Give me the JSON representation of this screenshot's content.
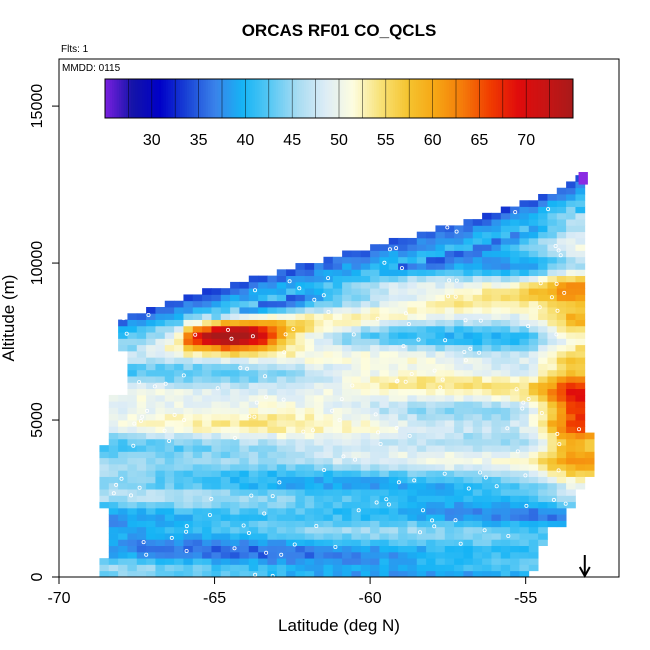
{
  "chart_data": {
    "type": "heatmap",
    "title": "ORCAS RF01 CO_QCLS",
    "subtitle_flights": "Flts: 1",
    "subtitle_date": "MMDD: 0115",
    "xlabel": "Latitude (deg N)",
    "ylabel": "Altitude (m)",
    "xlim": [
      -70,
      -52
    ],
    "ylim": [
      0,
      16500
    ],
    "x_ticks": [
      -70,
      -65,
      -60,
      -55
    ],
    "x_tick_labels": [
      "-70",
      "-65",
      "-60",
      "-55"
    ],
    "y_ticks": [
      0,
      5000,
      10000,
      15000
    ],
    "y_tick_labels": [
      "0",
      "5000",
      "10000",
      "15000"
    ],
    "colorbar": {
      "min": 25,
      "max": 75,
      "ticks": [
        30,
        35,
        40,
        45,
        50,
        55,
        60,
        65,
        70
      ],
      "tick_labels": [
        "30",
        "35",
        "40",
        "45",
        "50",
        "55",
        "60",
        "65",
        "70"
      ],
      "colors": [
        "#7a1fe0",
        "#1414a8",
        "#0000c8",
        "#1a45d6",
        "#3a82ea",
        "#16b4f5",
        "#58c8f4",
        "#a8dcf2",
        "#dcecf6",
        "#fdfde0",
        "#f8e278",
        "#f5c430",
        "#f6a614",
        "#f57a0a",
        "#f03c00",
        "#e00c0c",
        "#c81414",
        "#a81a1a"
      ]
    },
    "flight_lat_range": [
      -68.8,
      -53.0
    ],
    "ceiling_altitude": {
      "lat": [
        -68.2,
        -65.0,
        -62.0,
        -59.0,
        -56.0,
        -54.0,
        -53.3
      ],
      "alt": [
        8200,
        9200,
        10000,
        10800,
        11600,
        12300,
        12700
      ]
    },
    "co_layers": [
      {
        "name": "",
        "altitude": 7600,
        "lat_center": -64.5,
        "value": 68
      },
      {
        "name": "",
        "altitude": 8500,
        "lat_center": -60.0,
        "value": 57
      },
      {
        "name": "",
        "altitude": 4700,
        "lat_center": -53.5,
        "value": 67
      },
      {
        "name": "",
        "altitude": 5600,
        "lat_center": -62.0,
        "value": 53
      },
      {
        "name": "",
        "altitude": 1500,
        "lat_center": -62.0,
        "value": 42
      }
    ],
    "marker": {
      "type": "arrow-down",
      "lat": -53.1
    }
  }
}
